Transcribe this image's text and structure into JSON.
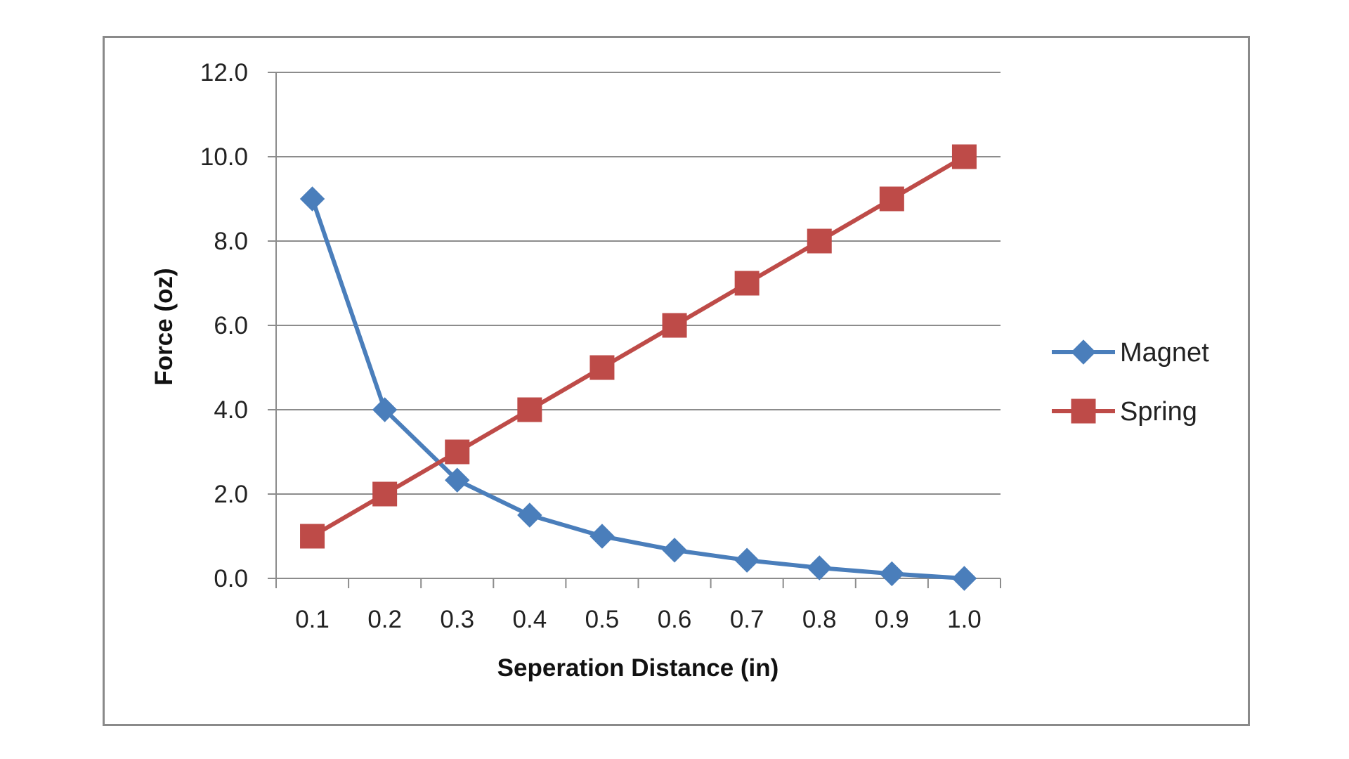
{
  "chart_data": {
    "type": "line",
    "title": "",
    "xlabel": "Seperation Distance (in)",
    "ylabel": "Force (oz)",
    "categories": [
      "0.1",
      "0.2",
      "0.3",
      "0.4",
      "0.5",
      "0.6",
      "0.7",
      "0.8",
      "0.9",
      "1.0"
    ],
    "ylim": [
      0,
      12
    ],
    "yticks": [
      "0.0",
      "2.0",
      "4.0",
      "6.0",
      "8.0",
      "10.0",
      "12.0"
    ],
    "grid": "horizontal",
    "legend_position": "right",
    "series": [
      {
        "name": "Magnet",
        "color": "#4a7ebb",
        "marker": "diamond",
        "values": [
          9.0,
          4.0,
          2.33,
          1.5,
          1.0,
          0.67,
          0.43,
          0.25,
          0.11,
          0.0
        ]
      },
      {
        "name": "Spring",
        "color": "#be4b48",
        "marker": "square",
        "values": [
          1.0,
          2.0,
          3.0,
          4.0,
          5.0,
          6.0,
          7.0,
          8.0,
          9.0,
          10.0
        ]
      }
    ]
  }
}
